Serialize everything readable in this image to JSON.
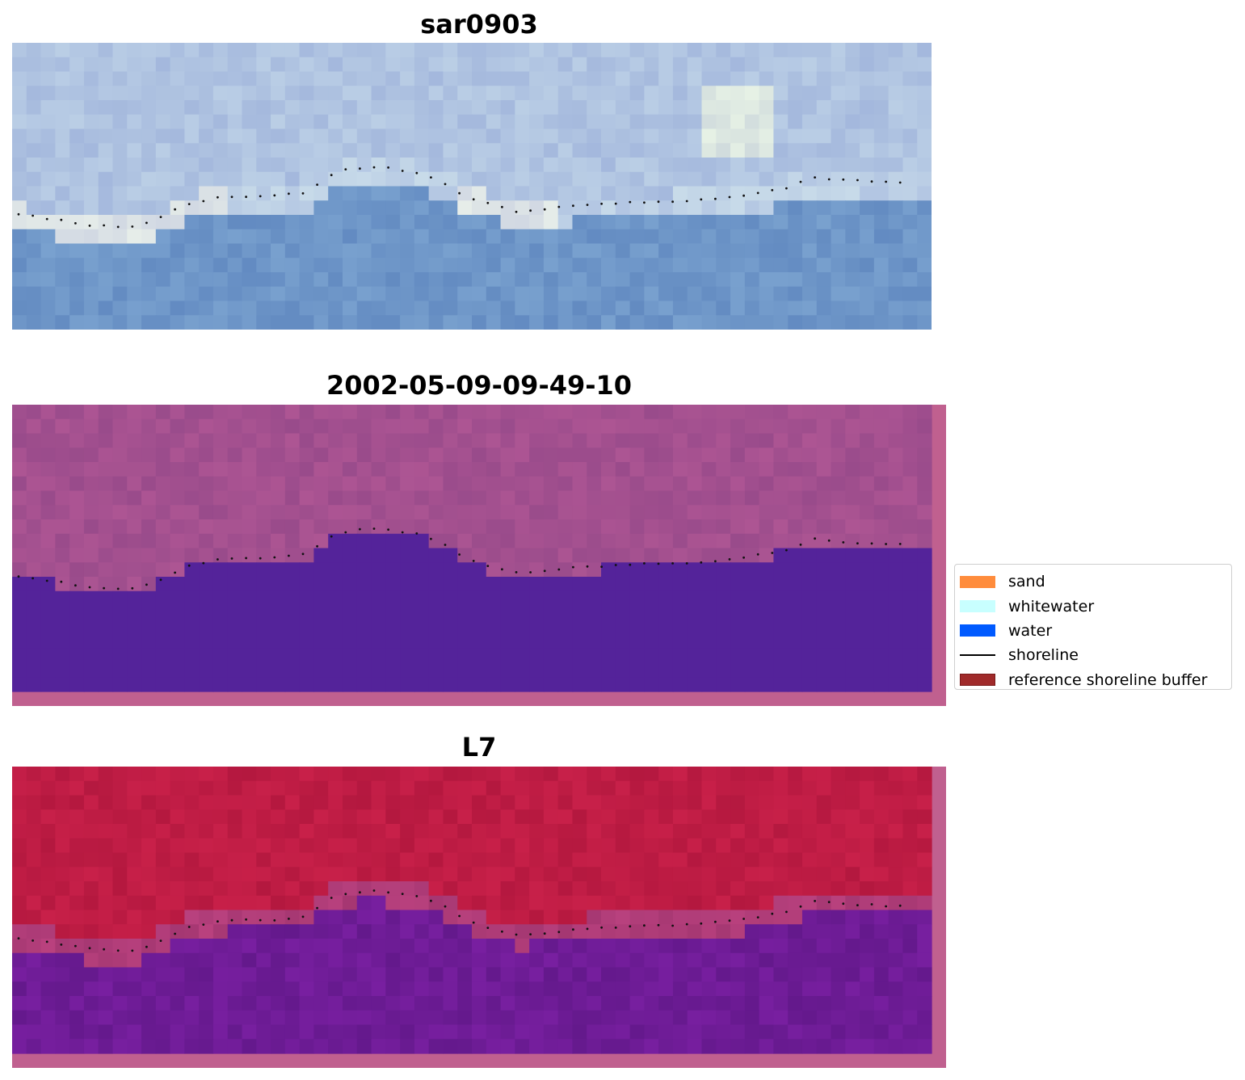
{
  "panels": [
    {
      "title": "sar0903",
      "style": "rgb"
    },
    {
      "title": "2002-05-09-09-49-10",
      "style": "classified"
    },
    {
      "title": "L7",
      "style": "index"
    }
  ],
  "legend": {
    "items": [
      {
        "label": "sand",
        "kind": "patch",
        "color": "#ff8c3c"
      },
      {
        "label": "whitewater",
        "kind": "patch",
        "color": "#c8ffff"
      },
      {
        "label": "water",
        "kind": "patch",
        "color": "#005aff"
      },
      {
        "label": "shoreline",
        "kind": "line",
        "color": "#000000"
      },
      {
        "label": "reference shoreline buffer",
        "kind": "patch",
        "color": "#a02a2a",
        "border": "#7a1a1a"
      }
    ]
  },
  "colors": {
    "classified_land": "#a3508f",
    "classified_water": "#54239a",
    "buffer_border": "#c0608f",
    "index_land": "#c01a45",
    "index_water": "#6e1a92"
  }
}
